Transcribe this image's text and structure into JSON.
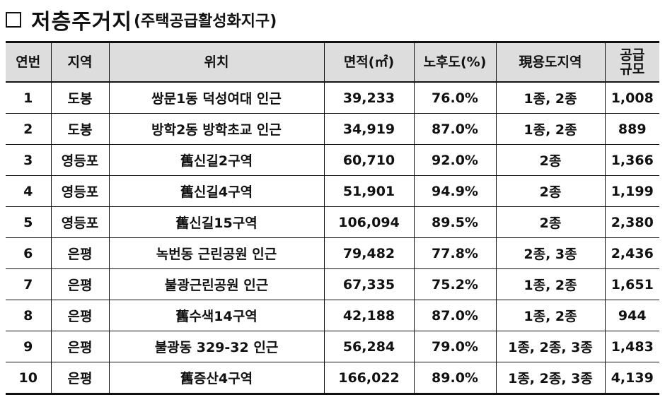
{
  "title": {
    "main": "저층주거지",
    "sub": "(주택공급활성화지구)"
  },
  "table": {
    "headers": [
      "연번",
      "지역",
      "위치",
      "면적(㎡)",
      "노후도(%)",
      "現용도지역",
      "공급 규모"
    ],
    "rows": [
      [
        "1",
        "도봉",
        "쌍문1동 덕성여대 인근",
        "39,233",
        "76.0%",
        "1종, 2종",
        "1,008"
      ],
      [
        "2",
        "도봉",
        "방학2동 방학초교 인근",
        "34,919",
        "87.0%",
        "1종, 2종",
        "889"
      ],
      [
        "3",
        "영등포",
        "舊신길2구역",
        "60,710",
        "92.0%",
        "2종",
        "1,366"
      ],
      [
        "4",
        "영등포",
        "舊신길4구역",
        "51,901",
        "94.9%",
        "2종",
        "1,199"
      ],
      [
        "5",
        "영등포",
        "舊신길15구역",
        "106,094",
        "89.5%",
        "2종",
        "2,380"
      ],
      [
        "6",
        "은평",
        "녹번동 근린공원 인근",
        "79,482",
        "77.8%",
        "2종, 3종",
        "2,436"
      ],
      [
        "7",
        "은평",
        "불광근린공원 인근",
        "67,335",
        "75.2%",
        "1종, 2종",
        "1,651"
      ],
      [
        "8",
        "은평",
        "舊수색14구역",
        "42,188",
        "87.0%",
        "1종, 2종",
        "944"
      ],
      [
        "9",
        "은평",
        "불광동 329-32 인근",
        "56,284",
        "79.0%",
        "1종, 2종, 3종",
        "1,483"
      ],
      [
        "10",
        "은평",
        "舊증산4구역",
        "166,022",
        "89.0%",
        "1종, 2종, 3종",
        "4,139"
      ]
    ]
  }
}
